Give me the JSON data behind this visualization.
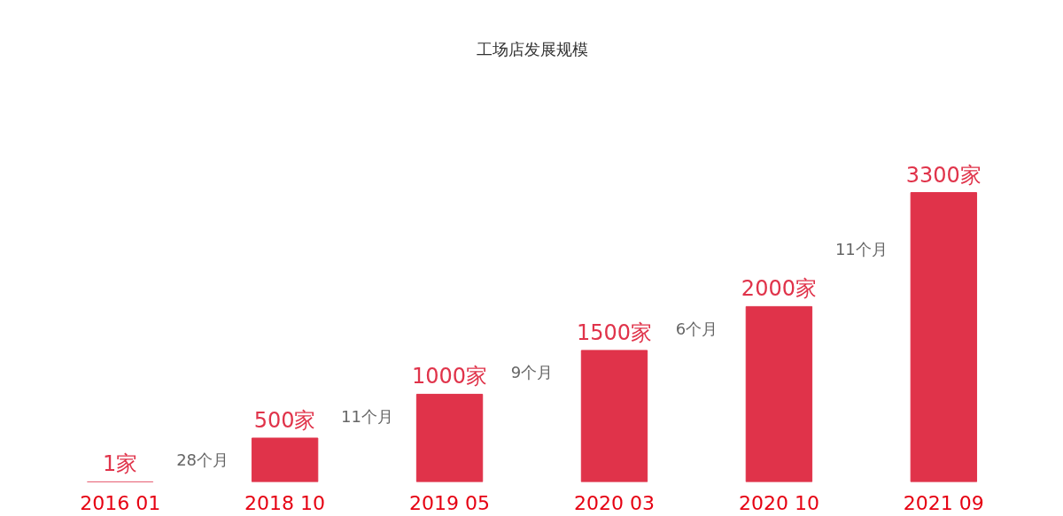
{
  "chart_data": {
    "type": "bar",
    "title": "工场店发展规模",
    "categories": [
      "2016 01",
      "2018 10",
      "2019 05",
      "2020 03",
      "2020 10",
      "2021 09"
    ],
    "values": [
      1,
      500,
      1000,
      1500,
      2000,
      3300
    ],
    "value_labels": [
      "1家",
      "500家",
      "1000家",
      "1500家",
      "2000家",
      "3300家"
    ],
    "color": "#e0334a",
    "annotations": [
      "28个月",
      "11个月",
      "9个月",
      "6个月",
      "11个月"
    ]
  }
}
